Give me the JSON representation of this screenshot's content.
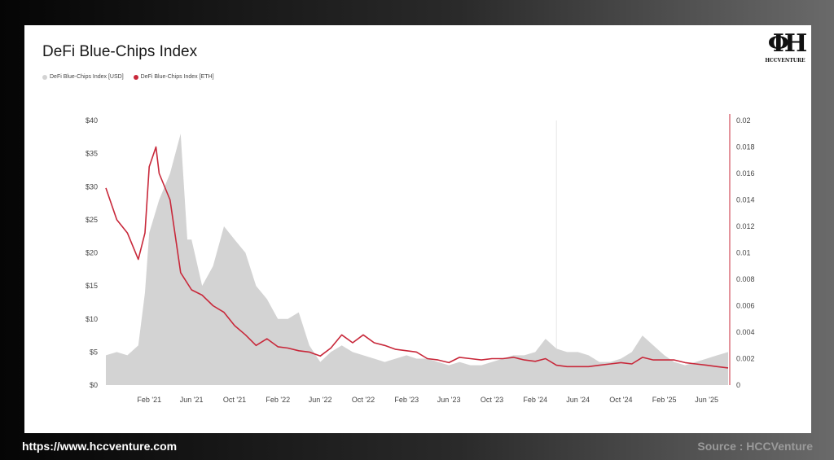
{
  "title": "DeFi Blue-Chips Index",
  "logo": {
    "text": "HCCVENTURE"
  },
  "footer": {
    "url": "https://www.hccventure.com",
    "source": "Source : HCCVenture"
  },
  "colors": {
    "usd_fill": "#d3d3d3",
    "eth_line": "#c8283a",
    "right_axis": "#c8283a"
  },
  "chart_data": {
    "type": "area",
    "title": "DeFi Blue-Chips Index",
    "legend_position": "top-left",
    "grid": false,
    "x_tick_labels": [
      "Feb '21",
      "Jun '21",
      "Oct '21",
      "Feb '22",
      "Jun '22",
      "Oct '22",
      "Feb '23",
      "Jun '23",
      "Oct '23",
      "Feb '24",
      "Jun '24",
      "Oct '24",
      "Feb '25",
      "Jun '25"
    ],
    "x_range": [
      "2020-10",
      "2025-08"
    ],
    "left_axis": {
      "ticks": [
        "$0",
        "$5",
        "$10",
        "$15",
        "$20",
        "$25",
        "$30",
        "$35",
        "$40"
      ],
      "ylim": [
        0,
        40
      ]
    },
    "right_axis": {
      "ticks": [
        "0",
        "0.002",
        "0.004",
        "0.006",
        "0.008",
        "0.01",
        "0.012",
        "0.014",
        "0.016",
        "0.018",
        "0.02"
      ],
      "ylim": [
        0,
        0.02
      ]
    },
    "series": [
      {
        "name": "DeFi Blue-Chips Index [USD]",
        "axis": "left",
        "style": "area",
        "points": [
          [
            "2020-10",
            4.5
          ],
          [
            "2020-11",
            5
          ],
          [
            "2020-12",
            4.5
          ],
          [
            "2021-01",
            6
          ],
          [
            "2021-01-20",
            14
          ],
          [
            "2021-02",
            23
          ],
          [
            "2021-03",
            28
          ],
          [
            "2021-04",
            32
          ],
          [
            "2021-05",
            38
          ],
          [
            "2021-05-20",
            22
          ],
          [
            "2021-06",
            22
          ],
          [
            "2021-07",
            15
          ],
          [
            "2021-08",
            18
          ],
          [
            "2021-09",
            24
          ],
          [
            "2021-10",
            22
          ],
          [
            "2021-11",
            20
          ],
          [
            "2021-12",
            15
          ],
          [
            "2022-01",
            13
          ],
          [
            "2022-02",
            10
          ],
          [
            "2022-03",
            10
          ],
          [
            "2022-04",
            11
          ],
          [
            "2022-05",
            6
          ],
          [
            "2022-06",
            3.5
          ],
          [
            "2022-07",
            5
          ],
          [
            "2022-08",
            6
          ],
          [
            "2022-09",
            5
          ],
          [
            "2022-10",
            4.5
          ],
          [
            "2022-11",
            4
          ],
          [
            "2022-12",
            3.5
          ],
          [
            "2023-01",
            4
          ],
          [
            "2023-02",
            4.5
          ],
          [
            "2023-03",
            4
          ],
          [
            "2023-04",
            4
          ],
          [
            "2023-05",
            3.5
          ],
          [
            "2023-06",
            3
          ],
          [
            "2023-07",
            3.5
          ],
          [
            "2023-08",
            3
          ],
          [
            "2023-09",
            3
          ],
          [
            "2023-10",
            3.5
          ],
          [
            "2023-11",
            4
          ],
          [
            "2023-12",
            4.5
          ],
          [
            "2024-01",
            4.5
          ],
          [
            "2024-02",
            5
          ],
          [
            "2024-03",
            7
          ],
          [
            "2024-04",
            5.5
          ],
          [
            "2024-05",
            5
          ],
          [
            "2024-06",
            5
          ],
          [
            "2024-07",
            4.5
          ],
          [
            "2024-08",
            3.5
          ],
          [
            "2024-09",
            3.5
          ],
          [
            "2024-10",
            4
          ],
          [
            "2024-11",
            5
          ],
          [
            "2024-12",
            7.5
          ],
          [
            "2025-01",
            6
          ],
          [
            "2025-02",
            4.5
          ],
          [
            "2025-03",
            3.5
          ],
          [
            "2025-04",
            3
          ],
          [
            "2025-05",
            3.5
          ],
          [
            "2025-06",
            4
          ],
          [
            "2025-07",
            4.5
          ],
          [
            "2025-08",
            5
          ]
        ]
      },
      {
        "name": "DeFi Blue-Chips Index [ETH]",
        "axis": "right",
        "style": "line",
        "points": [
          [
            "2020-10",
            0.0149
          ],
          [
            "2020-11",
            0.0125
          ],
          [
            "2020-12",
            0.0115
          ],
          [
            "2021-01",
            0.0095
          ],
          [
            "2021-01-20",
            0.0115
          ],
          [
            "2021-02",
            0.0165
          ],
          [
            "2021-02-20",
            0.018
          ],
          [
            "2021-03",
            0.016
          ],
          [
            "2021-04",
            0.014
          ],
          [
            "2021-05",
            0.0085
          ],
          [
            "2021-06",
            0.0072
          ],
          [
            "2021-07",
            0.0068
          ],
          [
            "2021-08",
            0.006
          ],
          [
            "2021-09",
            0.0055
          ],
          [
            "2021-10",
            0.0045
          ],
          [
            "2021-11",
            0.0038
          ],
          [
            "2021-12",
            0.003
          ],
          [
            "2022-01",
            0.0035
          ],
          [
            "2022-02",
            0.0029
          ],
          [
            "2022-03",
            0.0028
          ],
          [
            "2022-04",
            0.0026
          ],
          [
            "2022-05",
            0.0025
          ],
          [
            "2022-06",
            0.0022
          ],
          [
            "2022-07",
            0.0028
          ],
          [
            "2022-08",
            0.0038
          ],
          [
            "2022-09",
            0.0032
          ],
          [
            "2022-10",
            0.0038
          ],
          [
            "2022-11",
            0.0032
          ],
          [
            "2022-12",
            0.003
          ],
          [
            "2023-01",
            0.0027
          ],
          [
            "2023-02",
            0.0026
          ],
          [
            "2023-03",
            0.0025
          ],
          [
            "2023-04",
            0.002
          ],
          [
            "2023-05",
            0.0019
          ],
          [
            "2023-06",
            0.0017
          ],
          [
            "2023-07",
            0.0021
          ],
          [
            "2023-08",
            0.002
          ],
          [
            "2023-09",
            0.0019
          ],
          [
            "2023-10",
            0.002
          ],
          [
            "2023-11",
            0.002
          ],
          [
            "2023-12",
            0.0021
          ],
          [
            "2024-01",
            0.0019
          ],
          [
            "2024-02",
            0.0018
          ],
          [
            "2024-03",
            0.002
          ],
          [
            "2024-04",
            0.0015
          ],
          [
            "2024-05",
            0.0014
          ],
          [
            "2024-06",
            0.0014
          ],
          [
            "2024-07",
            0.0014
          ],
          [
            "2024-08",
            0.0015
          ],
          [
            "2024-09",
            0.0016
          ],
          [
            "2024-10",
            0.0017
          ],
          [
            "2024-11",
            0.0016
          ],
          [
            "2024-12",
            0.0021
          ],
          [
            "2025-01",
            0.0019
          ],
          [
            "2025-02",
            0.0019
          ],
          [
            "2025-03",
            0.0019
          ],
          [
            "2025-04",
            0.0017
          ],
          [
            "2025-05",
            0.0016
          ],
          [
            "2025-06",
            0.0015
          ],
          [
            "2025-07",
            0.0014
          ],
          [
            "2025-08",
            0.0013
          ]
        ]
      }
    ]
  }
}
